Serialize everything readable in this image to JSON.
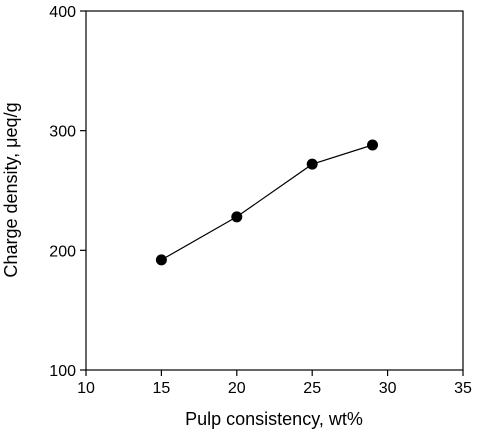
{
  "chart_data": {
    "type": "scatter",
    "title": "",
    "xlabel": "Pulp consistency, wt%",
    "ylabel": "Charge density, μeq/g",
    "xlim": [
      10,
      35
    ],
    "ylim": [
      100,
      400
    ],
    "xticks": [
      10,
      15,
      20,
      25,
      30,
      35
    ],
    "yticks": [
      100,
      200,
      300,
      400
    ],
    "grid": false,
    "legend": "none",
    "series": [
      {
        "x": [
          15,
          20,
          25,
          29
        ],
        "y": [
          192,
          228,
          272,
          288
        ],
        "marker": "filled-circle",
        "line": "solid",
        "color": "#000000"
      }
    ]
  }
}
